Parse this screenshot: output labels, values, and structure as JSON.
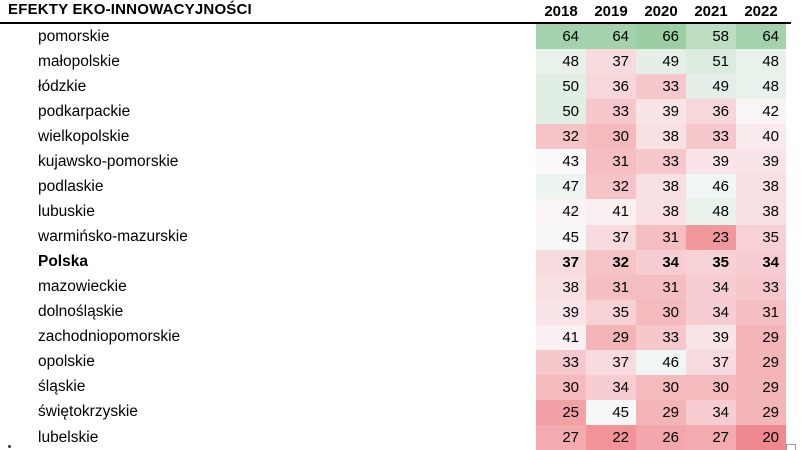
{
  "chart_data": {
    "type": "heatmap",
    "title": "EFEKTY EKO-INNOWACYJNOŚCI",
    "columns": [
      "2018",
      "2019",
      "2020",
      "2021",
      "2022"
    ],
    "rows": [
      {
        "label": "pomorskie",
        "bold": false,
        "values": [
          64,
          64,
          66,
          58,
          64
        ]
      },
      {
        "label": "małopolskie",
        "bold": false,
        "values": [
          48,
          37,
          49,
          51,
          48
        ]
      },
      {
        "label": "łódzkie",
        "bold": false,
        "values": [
          50,
          36,
          33,
          49,
          48
        ]
      },
      {
        "label": "podkarpackie",
        "bold": false,
        "values": [
          50,
          33,
          39,
          36,
          42
        ]
      },
      {
        "label": "wielkopolskie",
        "bold": false,
        "values": [
          32,
          30,
          38,
          33,
          40
        ]
      },
      {
        "label": "kujawsko-pomorskie",
        "bold": false,
        "values": [
          43,
          31,
          33,
          39,
          39
        ]
      },
      {
        "label": "podlaskie",
        "bold": false,
        "values": [
          47,
          32,
          38,
          46,
          38
        ]
      },
      {
        "label": "lubuskie",
        "bold": false,
        "values": [
          42,
          41,
          38,
          48,
          38
        ]
      },
      {
        "label": "warmińsko-mazurskie",
        "bold": false,
        "values": [
          45,
          37,
          31,
          23,
          35
        ]
      },
      {
        "label": "Polska",
        "bold": true,
        "values": [
          37,
          32,
          34,
          35,
          34
        ]
      },
      {
        "label": "mazowieckie",
        "bold": false,
        "values": [
          38,
          31,
          31,
          34,
          33
        ]
      },
      {
        "label": "dolnośląskie",
        "bold": false,
        "values": [
          39,
          35,
          30,
          34,
          31
        ]
      },
      {
        "label": "zachodniopomorskie",
        "bold": false,
        "values": [
          41,
          29,
          33,
          39,
          29
        ]
      },
      {
        "label": "opolskie",
        "bold": false,
        "values": [
          33,
          37,
          46,
          37,
          29
        ]
      },
      {
        "label": "śląskie",
        "bold": false,
        "values": [
          30,
          34,
          30,
          30,
          29
        ]
      },
      {
        "label": "świętokrzyskie",
        "bold": false,
        "values": [
          25,
          45,
          29,
          34,
          29
        ]
      },
      {
        "label": "lubelskie",
        "bold": false,
        "values": [
          27,
          22,
          26,
          27,
          20
        ]
      }
    ],
    "color_scale": {
      "min": {
        "value": 20,
        "color": "#F0898F"
      },
      "mid": {
        "value": 43.5,
        "color": "#FBFBFD"
      },
      "max": {
        "value": 66,
        "color": "#9CCEA4"
      }
    },
    "value_range": [
      20,
      66
    ],
    "legend": false,
    "grid": false
  },
  "text_color": "#000000",
  "rule_color": "#000000"
}
